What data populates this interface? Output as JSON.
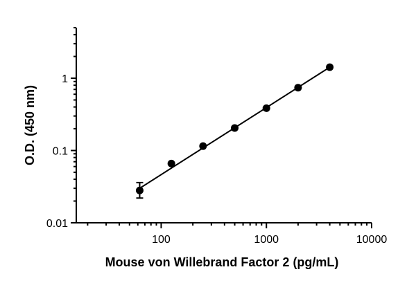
{
  "chart_data": {
    "type": "scatter",
    "xlabel": "Mouse von Willebrand Factor 2 (pg/mL)",
    "ylabel": "O.D. (450 nm)",
    "xscale": "log",
    "yscale": "log",
    "xlim": [
      15.6,
      10000
    ],
    "ylim": [
      0.01,
      5
    ],
    "x_ticks": [
      {
        "value": 100,
        "label": "100"
      },
      {
        "value": 1000,
        "label": "1000"
      },
      {
        "value": 10000,
        "label": "10000"
      }
    ],
    "y_ticks": [
      {
        "value": 0.01,
        "label": "0.01"
      },
      {
        "value": 0.1,
        "label": "0.1"
      },
      {
        "value": 1,
        "label": "1"
      }
    ],
    "grid": false,
    "legend": "none",
    "points": [
      {
        "x": 62.5,
        "y": 0.028,
        "err_low": 0.022,
        "err_high": 0.036
      },
      {
        "x": 125,
        "y": 0.066
      },
      {
        "x": 250,
        "y": 0.115
      },
      {
        "x": 500,
        "y": 0.205
      },
      {
        "x": 1000,
        "y": 0.385
      },
      {
        "x": 2000,
        "y": 0.74
      },
      {
        "x": 4000,
        "y": 1.42
      }
    ],
    "fit_line": {
      "x_start": 62.5,
      "y_start": 0.03,
      "x_end": 4000,
      "y_end": 1.42
    },
    "marker_color": "#000000"
  }
}
